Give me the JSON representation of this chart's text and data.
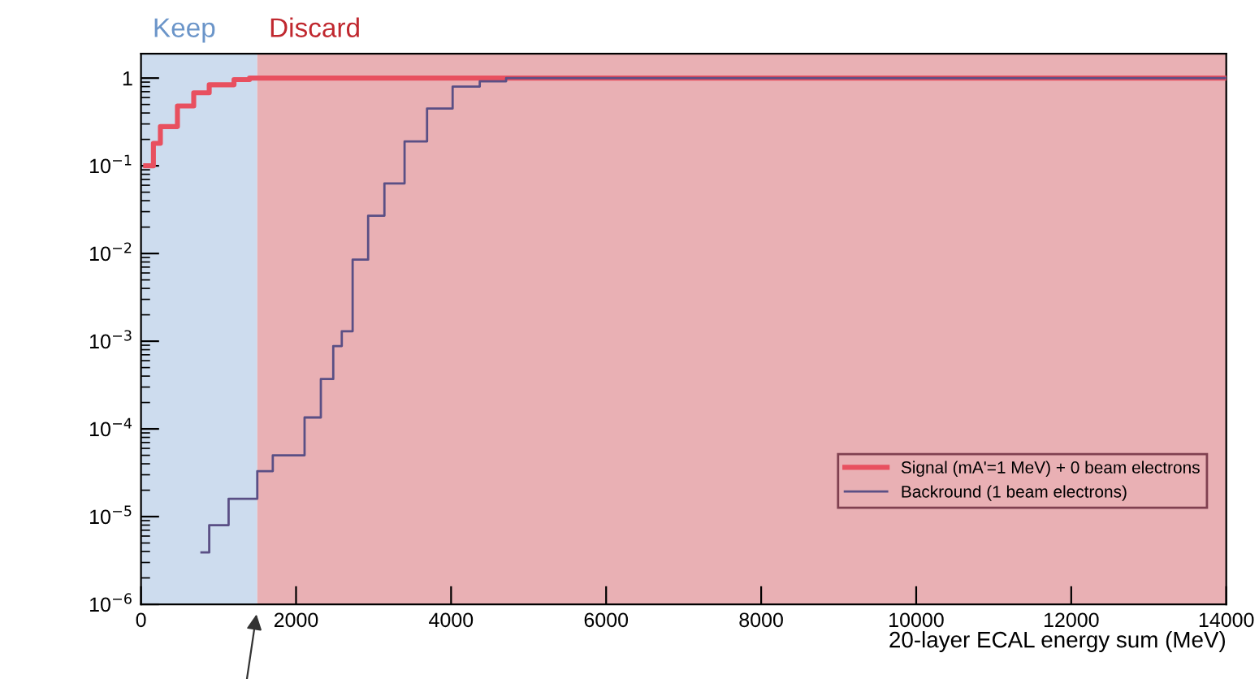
{
  "chart_data": {
    "type": "step",
    "xlabel": "20-layer ECAL energy sum (MeV)",
    "series": [
      {
        "name": "Signal (mA'=1 MeV) + 0 beam electrons",
        "color": "#e8505f",
        "x": [
          60,
          160,
          250,
          470,
          680,
          880,
          1200,
          1400,
          14000
        ],
        "values": [
          0.1,
          0.18,
          0.28,
          0.48,
          0.68,
          0.84,
          0.96,
          1,
          1
        ]
      },
      {
        "name": "Backround (1 beam electrons)",
        "color": "#5a4f85",
        "x": [
          780,
          880,
          1130,
          1500,
          1700,
          2110,
          2320,
          2480,
          2590,
          2730,
          2930,
          3140,
          3400,
          3690,
          4020,
          4370,
          4710,
          14000
        ],
        "values": [
          3.9e-06,
          8e-06,
          1.6e-05,
          3.3e-05,
          5e-05,
          0.000135,
          0.00037,
          0.00088,
          0.0013,
          0.0085,
          0.027,
          0.063,
          0.19,
          0.45,
          0.8,
          0.92,
          1,
          1
        ]
      }
    ],
    "bands": [
      {
        "axis": "x",
        "from": 0,
        "to": 1500,
        "label": "Keep",
        "color": "#cddcee"
      },
      {
        "axis": "x",
        "from": 1500,
        "to": 14000,
        "label": "Discard",
        "color": "#e9b0b4"
      }
    ],
    "log": "y",
    "xlim": [
      0,
      14000
    ],
    "xticks": [
      0,
      2000,
      4000,
      6000,
      8000,
      10000,
      12000,
      14000
    ],
    "ylim": [
      1e-06,
      1.9
    ],
    "yticks": [
      {
        "value": 1e-06,
        "label": "10$^{−6}$"
      },
      {
        "value": 1e-05,
        "label": "10$^{−5}$"
      },
      {
        "value": 0.0001,
        "label": "10$^{−4}$"
      },
      {
        "value": 0.001,
        "label": "10$^{−3}$"
      },
      {
        "value": 0.01,
        "label": "10$^{−2}$"
      },
      {
        "value": 0.1,
        "label": "10$^{−1}$"
      },
      1
    ],
    "grid": false,
    "legend": "bottom right"
  }
}
